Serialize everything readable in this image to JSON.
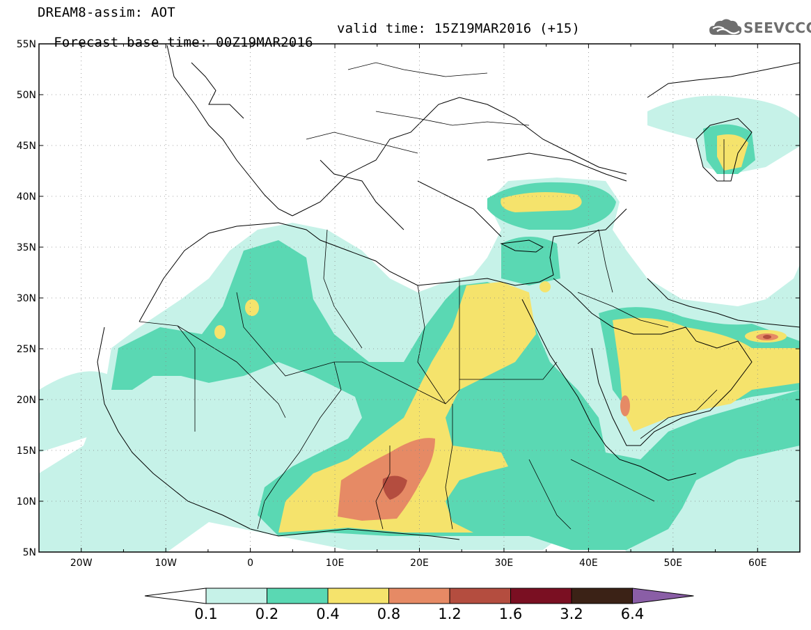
{
  "header": {
    "title_line1": "DREAM8-assim: AOT",
    "base_time": "Forecast base time: 00Z19MAR2016",
    "valid_time": "valid time: 15Z19MAR2016 (+15)",
    "logo_text": "SEEVCCC"
  },
  "map": {
    "lat_labels": [
      "55N",
      "50N",
      "45N",
      "40N",
      "35N",
      "30N",
      "25N",
      "20N",
      "15N",
      "10N",
      "5N"
    ],
    "lon_labels": [
      "20W",
      "10W",
      "0",
      "10E",
      "20E",
      "30E",
      "40E",
      "50E",
      "60E"
    ],
    "extent": {
      "lon": [
        -25,
        65
      ],
      "lat": [
        5,
        55
      ]
    },
    "gridlines": "dotted",
    "field": "aerosol optical thickness"
  },
  "colorbar": {
    "levels": [
      "0.1",
      "0.2",
      "0.4",
      "0.8",
      "1.2",
      "1.6",
      "3.2",
      "6.4"
    ],
    "colors": [
      "#c6f2e8",
      "#5ad8b3",
      "#f5e36c",
      "#e68a65",
      "#b44d3f",
      "#7a0f22",
      "#3b2216",
      "#8a5ea6"
    ]
  }
}
